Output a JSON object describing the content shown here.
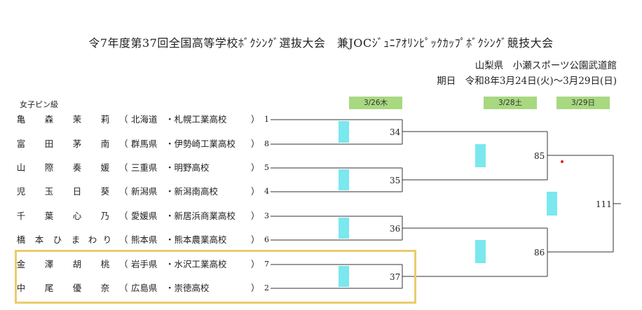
{
  "header": {
    "title": "令7年度第37回全国高等学校ﾎﾞｸｼﾝｸﾞ選抜大会　兼JOCｼﾞｭﾆｱｵﾘﾝﾋﾟｯｸｶｯﾌﾟﾎﾞｸｼﾝｸﾞ競技大会",
    "venue": "山梨県　小瀬スポーツ公園武道館",
    "dates": "期日　令和8年3月24日(火)～3月29日(日)"
  },
  "weight_class": "女子ピン級",
  "round_dates": [
    "3/26木",
    "3/28土",
    "3/29日"
  ],
  "entrants": [
    {
      "name": [
        "亀",
        "森",
        "茉",
        "莉"
      ],
      "prefecture": "北海道",
      "school": "・札幌工業高校",
      "seed": "1"
    },
    {
      "name": [
        "富",
        "田",
        "茅",
        "南"
      ],
      "prefecture": "群馬県",
      "school": "・伊勢崎工業高校",
      "seed": "8"
    },
    {
      "name": [
        "山",
        "際",
        "奏",
        "媛"
      ],
      "prefecture": "三重県",
      "school": "・明野高校",
      "seed": "5"
    },
    {
      "name": [
        "児",
        "玉",
        "日",
        "葵"
      ],
      "prefecture": "新潟県",
      "school": "・新潟南高校",
      "seed": "4"
    },
    {
      "name": [
        "千",
        "葉",
        "心",
        "乃"
      ],
      "prefecture": "愛媛県",
      "school": "・新居浜商業高校",
      "seed": "3"
    },
    {
      "name": [
        "橋",
        "本",
        "ひ",
        "ま",
        "わ",
        "り"
      ],
      "prefecture": "熊本県",
      "school": "・熊本農業高校",
      "seed": "6"
    },
    {
      "name": [
        "金",
        "澤",
        "胡",
        "桃"
      ],
      "prefecture": "岩手県",
      "school": "・水沢工業高校",
      "seed": "7"
    },
    {
      "name": [
        "中",
        "尾",
        "優",
        "奈"
      ],
      "prefecture": "広島県",
      "school": "・崇徳高校",
      "seed": "2"
    }
  ],
  "paren_open": "（",
  "paren_close": "）",
  "bouts": {
    "r1": [
      "34",
      "35",
      "36",
      "37"
    ],
    "r2": [
      "85",
      "86"
    ],
    "final": "111"
  },
  "colors": {
    "date_badge": "#a8d880",
    "cyan_marker": "#7ae8ee",
    "highlight_border": "#e9cd6a",
    "red_dot": "#dd2222"
  }
}
